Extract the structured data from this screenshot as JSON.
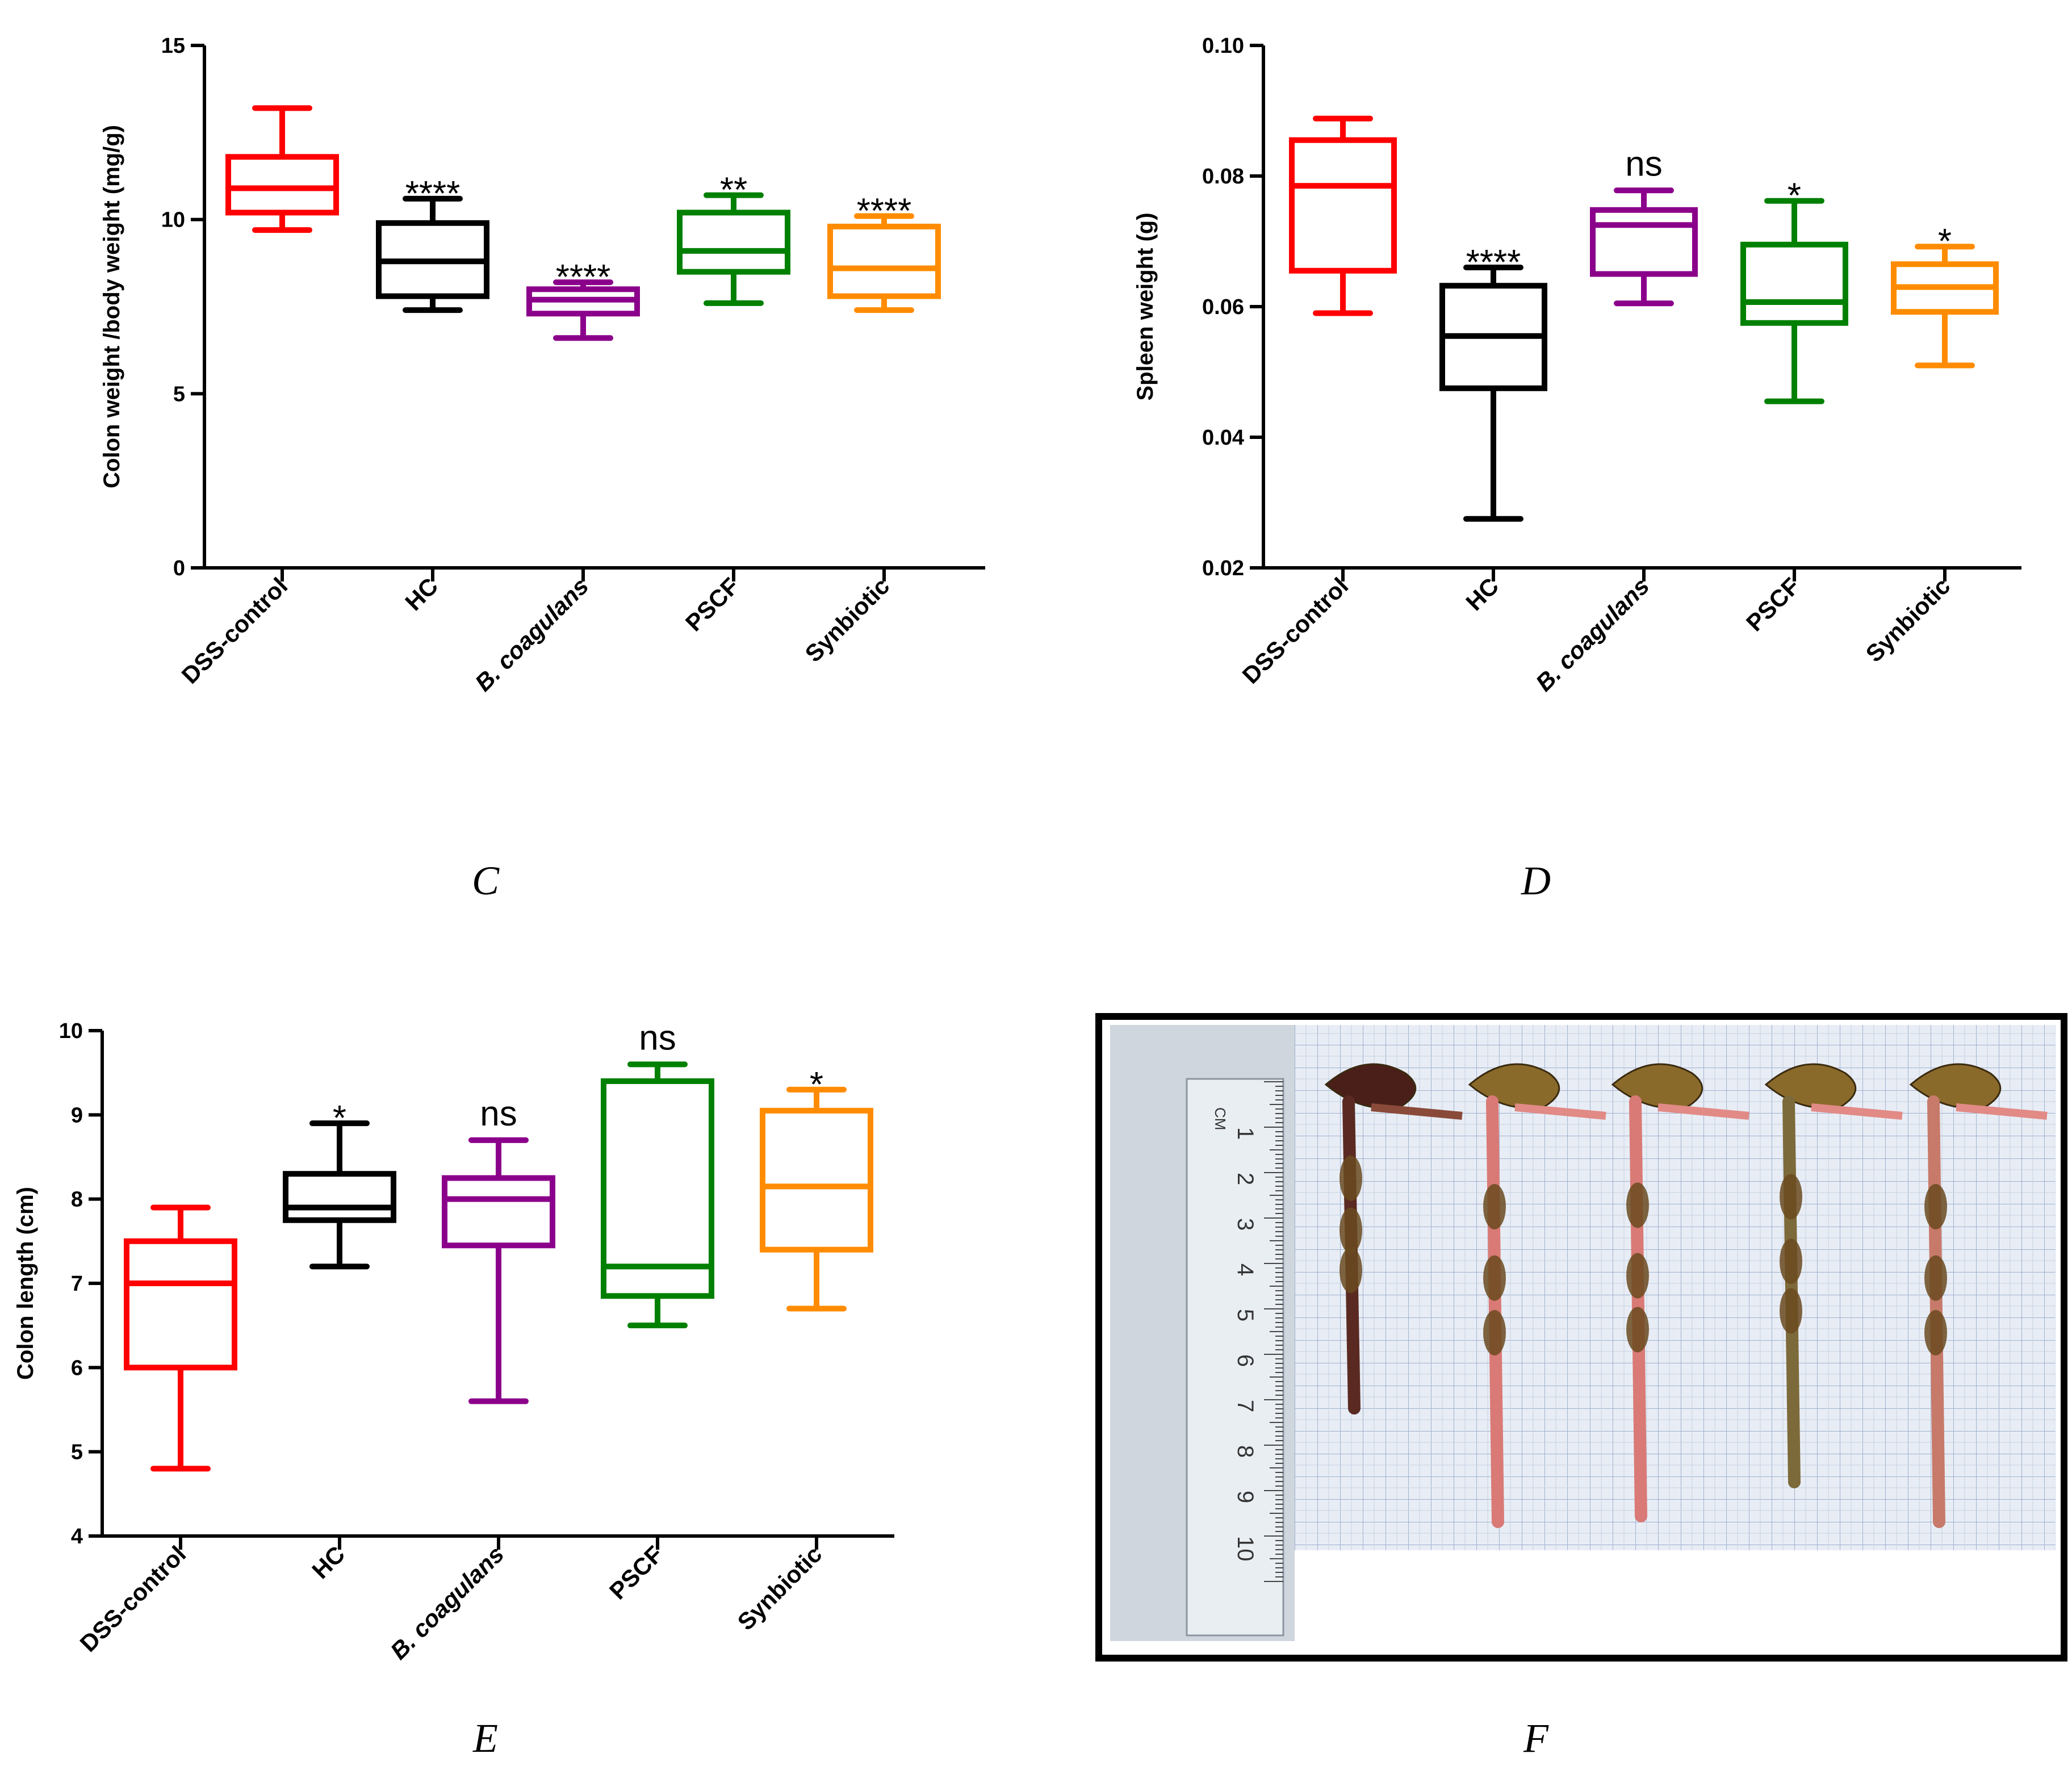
{
  "colors": {
    "DSS-control": "#ff0000",
    "HC": "#000000",
    "B. coagulans": "#8b008b",
    "PSCF": "#008000",
    "Synbiotic": "#ff8c00"
  },
  "chart_data": [
    {
      "panel": "C",
      "type": "box",
      "ylabel": "Colon weight /body weight (mg/g)",
      "ylim": [
        0,
        15
      ],
      "yticks": [
        "0",
        "5",
        "10",
        "15"
      ],
      "categories": [
        "DSS-control",
        "HC",
        "B. coagulans",
        "PSCF",
        "Synbiotic"
      ],
      "italic_categories": [
        "B. coagulans"
      ],
      "boxes": [
        {
          "min": 9.7,
          "q1": 10.2,
          "median": 10.9,
          "q3": 11.8,
          "max": 13.2,
          "annotation": ""
        },
        {
          "min": 7.4,
          "q1": 7.8,
          "median": 8.8,
          "q3": 9.9,
          "max": 10.6,
          "annotation": "****"
        },
        {
          "min": 6.6,
          "q1": 7.3,
          "median": 7.7,
          "q3": 8.0,
          "max": 8.2,
          "annotation": "****"
        },
        {
          "min": 7.6,
          "q1": 8.5,
          "median": 9.1,
          "q3": 10.2,
          "max": 10.7,
          "annotation": "**"
        },
        {
          "min": 7.4,
          "q1": 7.8,
          "median": 8.6,
          "q3": 9.8,
          "max": 10.1,
          "annotation": "****"
        }
      ]
    },
    {
      "panel": "D",
      "type": "box",
      "ylabel": "Spleen weight (g)",
      "ylim": [
        0.02,
        0.1
      ],
      "yticks": [
        "0.02",
        "0.04",
        "0.06",
        "0.08",
        "0.10"
      ],
      "categories": [
        "DSS-control",
        "HC",
        "B. coagulans",
        "PSCF",
        "Synbiotic"
      ],
      "italic_categories": [
        "B. coagulans"
      ],
      "boxes": [
        {
          "min": 0.059,
          "q1": 0.0655,
          "median": 0.0785,
          "q3": 0.0855,
          "max": 0.0888,
          "annotation": ""
        },
        {
          "min": 0.0275,
          "q1": 0.0475,
          "median": 0.0555,
          "q3": 0.0632,
          "max": 0.066,
          "annotation": "****"
        },
        {
          "min": 0.0605,
          "q1": 0.065,
          "median": 0.0725,
          "q3": 0.0748,
          "max": 0.0778,
          "annotation": "ns"
        },
        {
          "min": 0.0455,
          "q1": 0.0575,
          "median": 0.0607,
          "q3": 0.0695,
          "max": 0.0762,
          "annotation": "*"
        },
        {
          "min": 0.051,
          "q1": 0.0592,
          "median": 0.063,
          "q3": 0.0665,
          "max": 0.0692,
          "annotation": "*"
        }
      ]
    },
    {
      "panel": "E",
      "type": "box",
      "ylabel": "Colon length (cm)",
      "ylim": [
        4,
        10
      ],
      "yticks": [
        "4",
        "5",
        "6",
        "7",
        "8",
        "9",
        "10"
      ],
      "categories": [
        "DSS-control",
        "HC",
        "B. coagulans",
        "PSCF",
        "Synbiotic"
      ],
      "italic_categories": [
        "B. coagulans"
      ],
      "boxes": [
        {
          "min": 4.8,
          "q1": 6.0,
          "median": 7.0,
          "q3": 7.5,
          "max": 7.9,
          "annotation": ""
        },
        {
          "min": 7.2,
          "q1": 7.75,
          "median": 7.9,
          "q3": 8.3,
          "max": 8.9,
          "annotation": "*"
        },
        {
          "min": 5.6,
          "q1": 7.45,
          "median": 8.0,
          "q3": 8.25,
          "max": 8.7,
          "annotation": "ns"
        },
        {
          "min": 6.5,
          "q1": 6.85,
          "median": 7.2,
          "q3": 9.4,
          "max": 9.6,
          "annotation": "ns"
        },
        {
          "min": 6.7,
          "q1": 7.4,
          "median": 8.15,
          "q3": 9.05,
          "max": 9.3,
          "annotation": "*"
        }
      ]
    }
  ],
  "panel_labels": {
    "C": "C",
    "D": "D",
    "E": "E",
    "F": "F"
  },
  "photo": {
    "ruler_numbers": [
      "1",
      "2",
      "3",
      "4",
      "5",
      "6",
      "7",
      "8",
      "9",
      "10"
    ],
    "ruler_unit": "CM"
  }
}
